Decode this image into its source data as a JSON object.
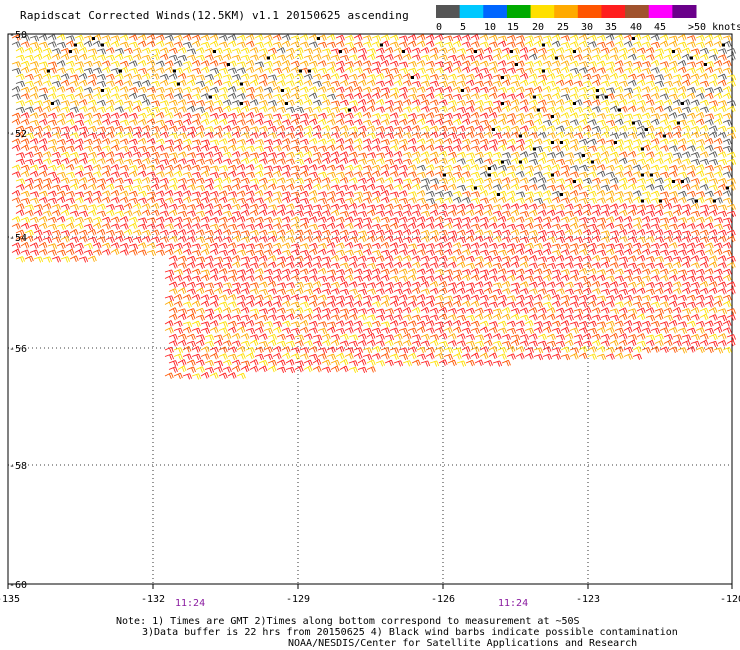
{
  "title": "Rapidscat Corrected Winds(12.5KM) v1.1 20150625 ascending",
  "legend": {
    "colors": [
      "#555555",
      "#00c8ff",
      "#0066ff",
      "#00aa00",
      "#ffe000",
      "#ffaa00",
      "#ff5500",
      "#ff1e1e",
      "#a0522d",
      "#ff00ff",
      "#6a008a"
    ],
    "labels": [
      "0",
      "5",
      "10",
      "15",
      "20",
      "25",
      "30",
      "35",
      "40",
      "45",
      ">50 knots"
    ]
  },
  "axes": {
    "x_ticks": [
      "-135",
      "-132",
      "-129",
      "-126",
      "-123",
      "-120"
    ],
    "y_ticks": [
      "-50",
      "-52",
      "-54",
      "-56",
      "-58",
      "-60"
    ]
  },
  "times": [
    "11:24",
    "11:24"
  ],
  "notes": {
    "line1": "Note: 1) Times are GMT 2)Times along bottom correspond to measurement at ~50S",
    "line2": "3)Data buffer is 22 hrs from 20150625 4) Black wind barbs indicate possible contamination",
    "line3": "NOAA/NESDIS/Center for Satellite Applications and Research"
  }
}
